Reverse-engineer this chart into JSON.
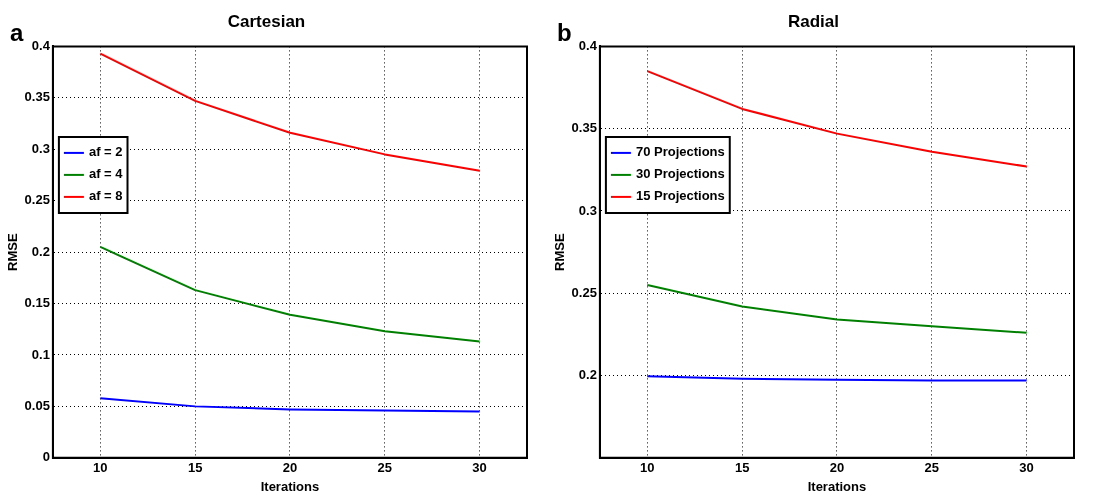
{
  "chart_data": [
    {
      "type": "line",
      "title": "Cartesian",
      "xlabel": "Iterations",
      "ylabel": "RMSE",
      "annotations": [
        "a"
      ],
      "x": [
        10,
        15,
        20,
        25,
        30
      ],
      "xlim": [
        7.5,
        32.5
      ],
      "xticks": [
        10,
        15,
        20,
        25,
        30
      ],
      "ylim": [
        0,
        0.4
      ],
      "yticks": [
        0,
        0.05,
        0.1,
        0.15,
        0.2,
        0.25,
        0.3,
        0.35,
        0.4
      ],
      "grid": true,
      "legend": "left",
      "line_style": "solid",
      "series": [
        {
          "name": "af = 2",
          "color": "#0000ff",
          "values": [
            0.058,
            0.05,
            0.047,
            0.046,
            0.045
          ]
        },
        {
          "name": "af = 4",
          "color": "#008000",
          "values": [
            0.205,
            0.163,
            0.139,
            0.123,
            0.113
          ]
        },
        {
          "name": "af = 8",
          "color": "#ff0000",
          "values": [
            0.393,
            0.347,
            0.316,
            0.295,
            0.279
          ]
        }
      ]
    },
    {
      "type": "line",
      "title": "Radial",
      "xlabel": "Iterations",
      "ylabel": "RMSE",
      "annotations": [
        "b"
      ],
      "x": [
        10,
        15,
        20,
        25,
        30
      ],
      "xlim": [
        7.5,
        32.5
      ],
      "xticks": [
        10,
        15,
        20,
        25,
        30
      ],
      "ylim": [
        0.15,
        0.4
      ],
      "yticks": [
        0.2,
        0.25,
        0.3,
        0.35,
        0.4
      ],
      "grid": true,
      "legend": "left",
      "line_style": "solid",
      "series": [
        {
          "name": "70 Projections",
          "color": "#0000ff",
          "values": [
            0.1996,
            0.198,
            0.1975,
            0.197,
            0.197
          ]
        },
        {
          "name": "30 Projections",
          "color": "#008000",
          "values": [
            0.255,
            0.242,
            0.234,
            0.23,
            0.226
          ]
        },
        {
          "name": "15 Projections",
          "color": "#ff0000",
          "values": [
            0.385,
            0.362,
            0.347,
            0.336,
            0.327
          ]
        }
      ]
    }
  ]
}
